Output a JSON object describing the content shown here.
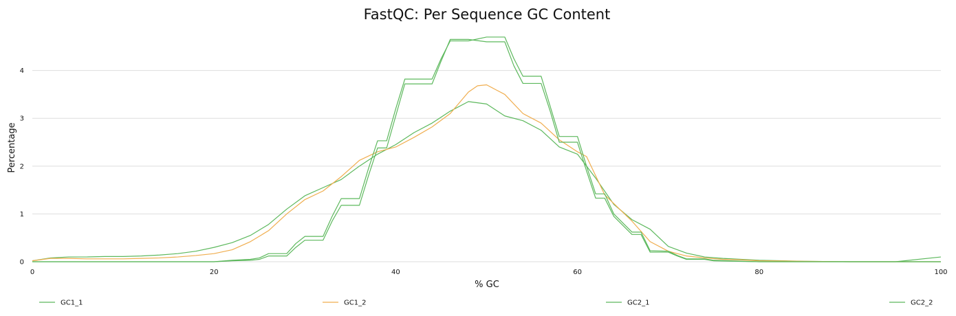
{
  "chart_data": {
    "type": "line",
    "title": "FastQC: Per Sequence GC Content",
    "xlabel": "% GC",
    "ylabel": "Percentage",
    "xlim": [
      0,
      100
    ],
    "ylim": [
      0,
      4.9
    ],
    "xticks": [
      0,
      20,
      40,
      60,
      80,
      100
    ],
    "yticks": [
      0,
      1,
      2,
      3,
      4
    ],
    "grid": "horizontal",
    "legend_position": "bottom",
    "series": [
      {
        "name": "GC1_1",
        "color": "#5cb85c",
        "x": [
          0,
          2,
          4,
          6,
          8,
          10,
          12,
          14,
          16,
          18,
          20,
          22,
          24,
          26,
          28,
          30,
          32,
          34,
          36,
          38,
          40,
          42,
          44,
          46,
          48,
          50,
          52,
          54,
          56,
          58,
          60,
          62,
          64,
          66,
          68,
          70,
          72,
          74,
          76,
          78,
          80,
          85,
          90,
          95,
          100
        ],
        "y": [
          0.02,
          0.08,
          0.1,
          0.1,
          0.11,
          0.11,
          0.12,
          0.14,
          0.17,
          0.22,
          0.3,
          0.4,
          0.55,
          0.78,
          1.1,
          1.38,
          1.55,
          1.72,
          2.0,
          2.25,
          2.45,
          2.7,
          2.9,
          3.15,
          3.35,
          3.3,
          3.05,
          2.95,
          2.75,
          2.4,
          2.25,
          1.75,
          1.2,
          0.88,
          0.68,
          0.32,
          0.18,
          0.1,
          0.07,
          0.05,
          0.03,
          0.01,
          0.0,
          0.0,
          0.1
        ]
      },
      {
        "name": "GC1_2",
        "color": "#f0ad4e",
        "x": [
          0,
          2,
          4,
          6,
          8,
          10,
          12,
          14,
          16,
          18,
          20,
          22,
          24,
          26,
          28,
          30,
          32,
          34,
          36,
          38,
          40,
          42,
          44,
          46,
          48,
          49,
          50,
          51,
          52,
          54,
          56,
          58,
          60,
          61,
          63,
          66,
          68,
          70,
          72,
          74,
          76,
          78,
          80,
          85,
          90,
          95,
          100
        ],
        "y": [
          0.02,
          0.07,
          0.07,
          0.06,
          0.06,
          0.06,
          0.07,
          0.08,
          0.1,
          0.13,
          0.17,
          0.25,
          0.42,
          0.65,
          1.0,
          1.3,
          1.48,
          1.78,
          2.12,
          2.3,
          2.4,
          2.6,
          2.82,
          3.1,
          3.55,
          3.68,
          3.7,
          3.6,
          3.5,
          3.1,
          2.9,
          2.55,
          2.3,
          2.2,
          1.4,
          0.85,
          0.42,
          0.22,
          0.12,
          0.08,
          0.05,
          0.04,
          0.02,
          0.01,
          0.0,
          0.0,
          0.0
        ]
      },
      {
        "name": "GC2_1",
        "color": "#5cb85c",
        "x": [
          0,
          5,
          10,
          15,
          20,
          22,
          24,
          25,
          26,
          28,
          29,
          30,
          32,
          33,
          34,
          36,
          37,
          38,
          39,
          40,
          41,
          42,
          44,
          45,
          46,
          48,
          50,
          52,
          53,
          54,
          56,
          57,
          58,
          60,
          61,
          62,
          63,
          64,
          66,
          67,
          68,
          70,
          71,
          72,
          74,
          75,
          80,
          85,
          90,
          95,
          100
        ],
        "y": [
          0,
          0,
          0,
          0,
          0,
          0.02,
          0.03,
          0.05,
          0.12,
          0.12,
          0.3,
          0.45,
          0.45,
          0.85,
          1.18,
          1.18,
          1.8,
          2.38,
          2.38,
          3.05,
          3.72,
          3.72,
          3.72,
          4.2,
          4.65,
          4.65,
          4.6,
          4.6,
          4.1,
          3.73,
          3.73,
          3.15,
          2.5,
          2.5,
          1.9,
          1.33,
          1.33,
          0.95,
          0.57,
          0.57,
          0.2,
          0.2,
          0.12,
          0.05,
          0.05,
          0.02,
          0,
          0,
          0,
          0,
          0
        ]
      },
      {
        "name": "GC2_2",
        "color": "#5cb85c",
        "x": [
          0,
          5,
          10,
          15,
          20,
          22,
          24,
          25,
          26,
          28,
          29,
          30,
          32,
          33,
          34,
          36,
          37,
          38,
          39,
          40,
          41,
          42,
          44,
          45,
          46,
          48,
          50,
          52,
          53,
          54,
          56,
          57,
          58,
          60,
          61,
          62,
          63,
          64,
          66,
          67,
          68,
          70,
          71,
          72,
          74,
          75,
          80,
          85,
          90,
          95,
          100
        ],
        "y": [
          0,
          0,
          0,
          0,
          0,
          0.03,
          0.05,
          0.08,
          0.17,
          0.17,
          0.38,
          0.53,
          0.53,
          0.95,
          1.32,
          1.32,
          1.95,
          2.53,
          2.53,
          3.2,
          3.82,
          3.82,
          3.82,
          4.25,
          4.62,
          4.62,
          4.7,
          4.7,
          4.25,
          3.88,
          3.88,
          3.25,
          2.62,
          2.62,
          2.0,
          1.42,
          1.42,
          1.0,
          0.62,
          0.62,
          0.23,
          0.22,
          0.13,
          0.06,
          0.06,
          0.03,
          0,
          0,
          0,
          0,
          0
        ]
      }
    ]
  }
}
